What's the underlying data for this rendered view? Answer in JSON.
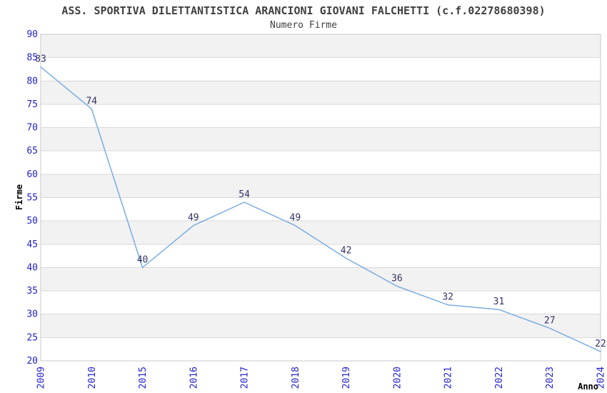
{
  "header": {
    "title": "ASS. SPORTIVA DILETTANTISTICA ARANCIONI GIOVANI FALCHETTI (c.f.02278680398)",
    "subtitle": "Numero Firme"
  },
  "chart_data": {
    "type": "line",
    "title": "ASS. SPORTIVA DILETTANTISTICA ARANCIONI GIOVANI FALCHETTI (c.f.02278680398)",
    "subtitle": "Numero Firme",
    "xlabel": "Anno",
    "ylabel": "Firme",
    "categories": [
      "2009",
      "2010",
      "2015",
      "2016",
      "2017",
      "2018",
      "2019",
      "2020",
      "2021",
      "2022",
      "2023",
      "2024"
    ],
    "values": [
      83,
      74,
      40,
      49,
      54,
      49,
      42,
      36,
      32,
      31,
      27,
      22
    ],
    "ylim": [
      20,
      90
    ],
    "ytick_step": 5,
    "yticks": [
      20,
      25,
      30,
      35,
      40,
      45,
      50,
      55,
      60,
      65,
      70,
      75,
      80,
      85,
      90
    ],
    "grid": true,
    "banded_background": true,
    "legend": "none",
    "data_labels_visible": true,
    "colors": {
      "line": "#7aade2",
      "tick_label": "#2323cc",
      "data_label": "#333366",
      "title_text": "#404040",
      "band": "#f2f2f2",
      "band_alt": "#ffffff",
      "gridline": "#d9d9d9",
      "border": "#c8c8c8",
      "axis_title": "#000000",
      "background": "#ffffff"
    }
  }
}
